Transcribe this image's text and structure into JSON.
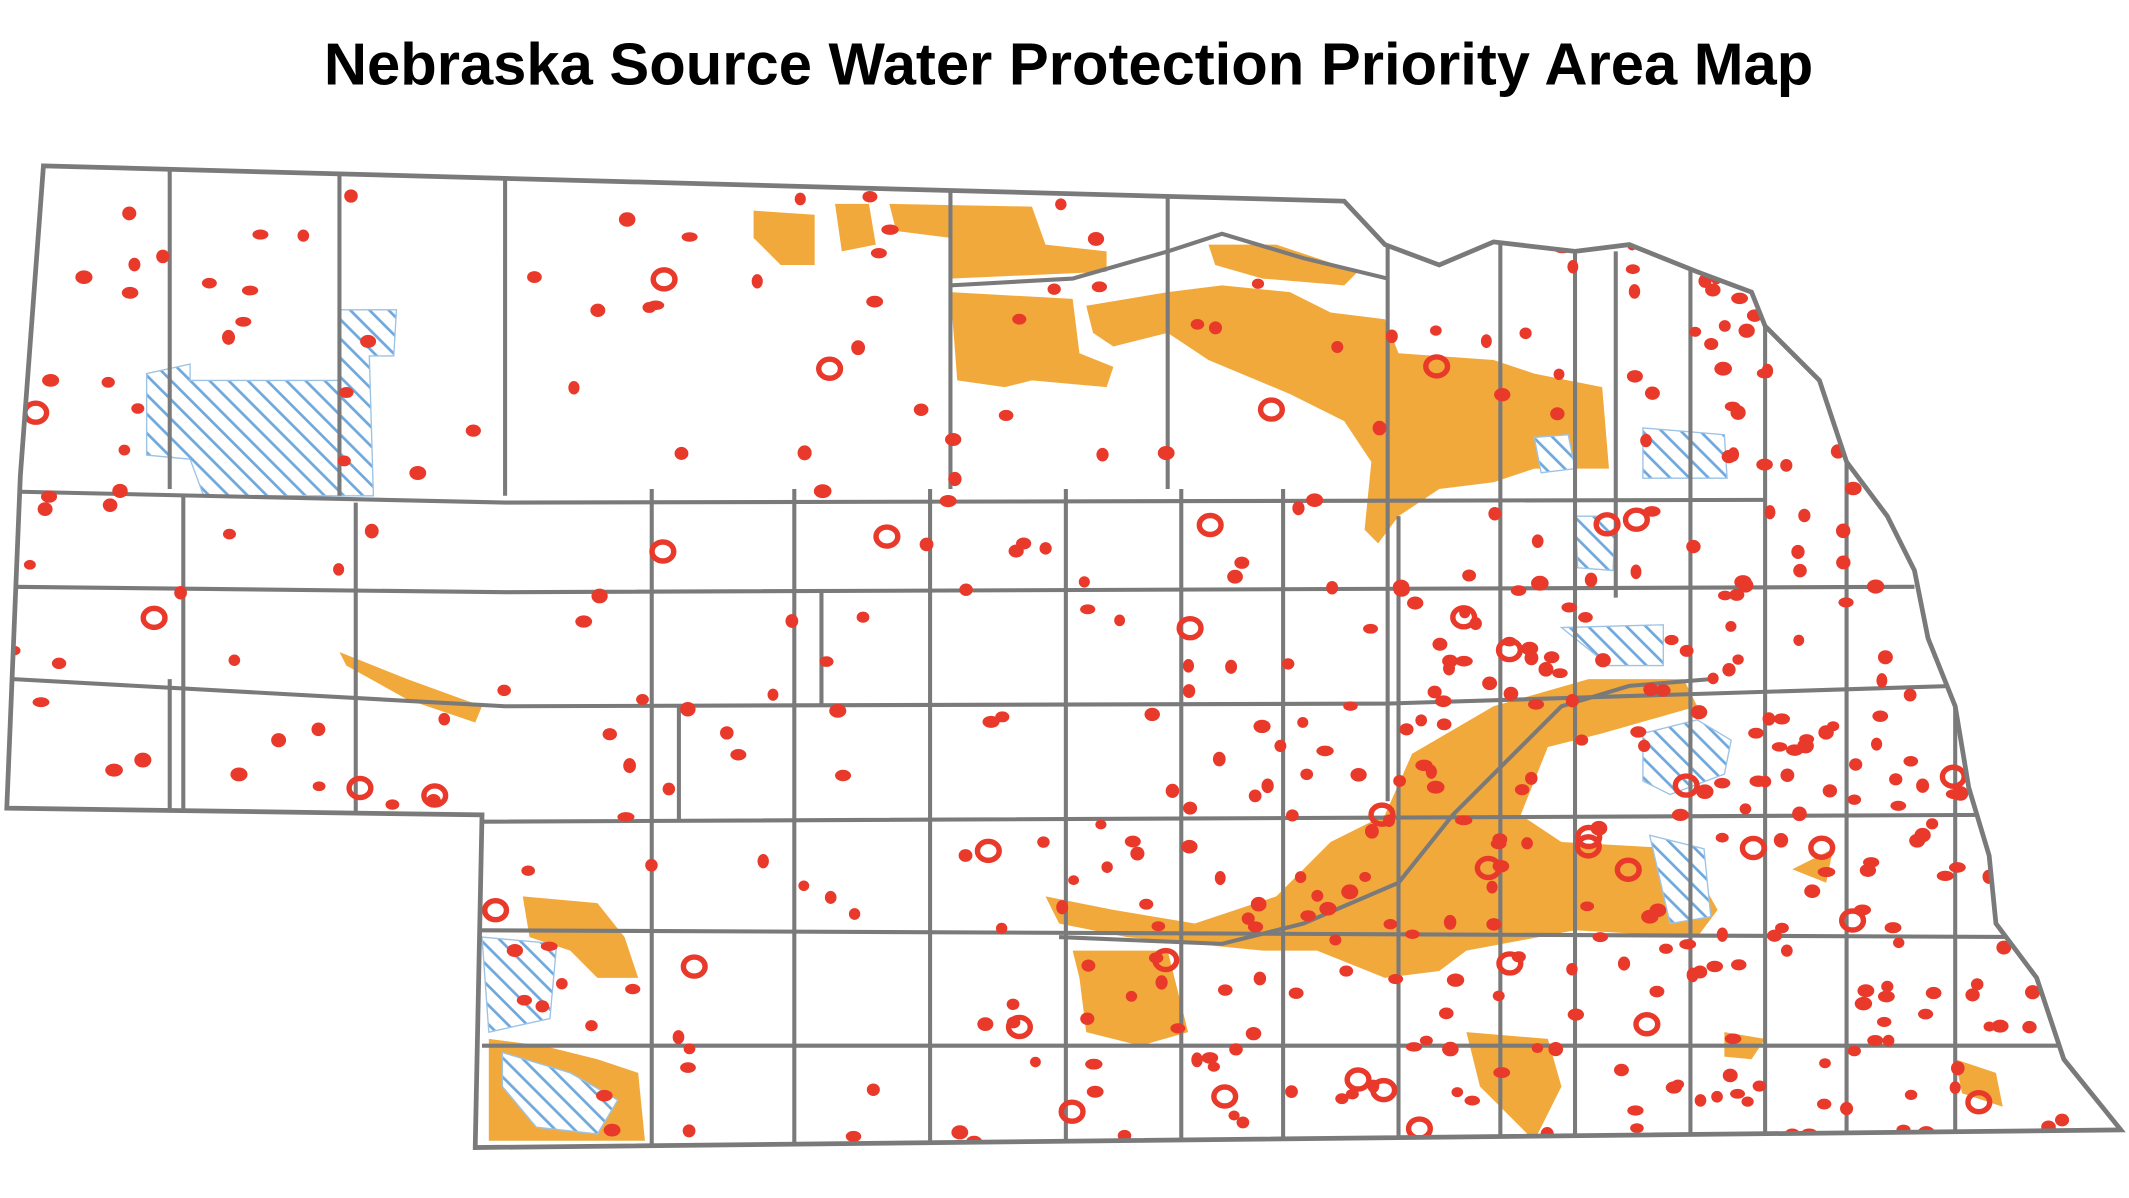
{
  "title": "Nebraska Source Water Protection Priority Area Map"
}
